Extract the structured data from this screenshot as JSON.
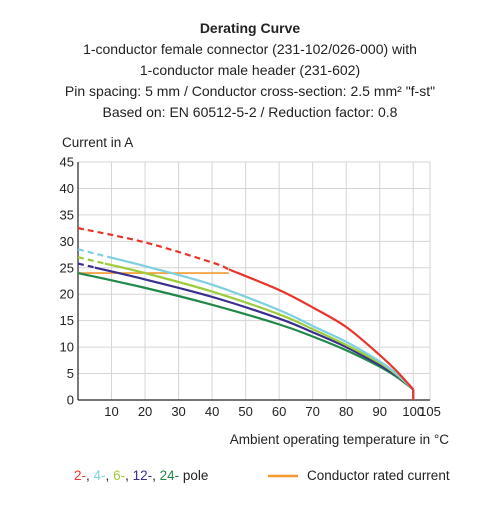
{
  "chart_data": {
    "type": "line",
    "title": "Derating Curve",
    "subtitle_lines": [
      "1-conductor female connector (231-102/026-000) with",
      "1-conductor male header (231-602)",
      "Pin spacing: 5 mm / Conductor cross-section: 2.5 mm² \"f-st\"",
      "Based on: EN 60512-5-2 / Reduction factor: 0.8"
    ],
    "ylabel": "Current in A",
    "xlabel": "Ambient operating temperature in °C",
    "xlim": [
      0,
      105
    ],
    "ylim": [
      0,
      45
    ],
    "x_ticks": [
      "10",
      "20",
      "30",
      "40",
      "50",
      "60",
      "70",
      "80",
      "90",
      "100",
      "105"
    ],
    "x_tick_values": [
      10,
      20,
      30,
      40,
      50,
      60,
      70,
      80,
      90,
      100,
      105
    ],
    "y_ticks": [
      "0",
      "5",
      "10",
      "15",
      "20",
      "25",
      "30",
      "35",
      "40",
      "45"
    ],
    "y_tick_values": [
      0,
      5,
      10,
      15,
      20,
      25,
      30,
      35,
      40,
      45
    ],
    "grid": true,
    "series": [
      {
        "name": "2-",
        "color": "#e8342a",
        "points": [
          [
            0,
            32.5
          ],
          [
            20,
            29.8
          ],
          [
            40,
            26.0
          ],
          [
            60,
            20.8
          ],
          [
            70,
            17.5
          ],
          [
            80,
            13.8
          ],
          [
            90,
            8.5
          ],
          [
            95,
            5.5
          ],
          [
            100,
            2.0
          ]
        ],
        "dashed_until": 45
      },
      {
        "name": "4-",
        "color": "#7ecfe0",
        "points": [
          [
            0,
            28.5
          ],
          [
            20,
            25.3
          ],
          [
            40,
            21.8
          ],
          [
            60,
            17.0
          ],
          [
            70,
            14.0
          ],
          [
            80,
            11.0
          ],
          [
            90,
            7.3
          ],
          [
            95,
            5.0
          ],
          [
            100,
            2.0
          ]
        ],
        "dashed_until": 10
      },
      {
        "name": "6-",
        "color": "#9ccb3b",
        "points": [
          [
            0,
            27.0
          ],
          [
            20,
            24.0
          ],
          [
            40,
            20.5
          ],
          [
            60,
            16.2
          ],
          [
            70,
            13.4
          ],
          [
            80,
            10.4
          ],
          [
            90,
            7.0
          ],
          [
            95,
            4.8
          ],
          [
            100,
            2.0
          ]
        ],
        "dashed_until": 8
      },
      {
        "name": "12-",
        "color": "#3a2e8f",
        "points": [
          [
            0,
            25.8
          ],
          [
            20,
            22.8
          ],
          [
            40,
            19.5
          ],
          [
            60,
            15.4
          ],
          [
            70,
            12.8
          ],
          [
            80,
            10.0
          ],
          [
            90,
            6.6
          ],
          [
            95,
            4.6
          ],
          [
            100,
            2.0
          ]
        ],
        "dashed_until": 5
      },
      {
        "name": "24-",
        "color": "#22884a",
        "points": [
          [
            0,
            24.0
          ],
          [
            20,
            21.2
          ],
          [
            40,
            18.0
          ],
          [
            60,
            14.3
          ],
          [
            70,
            12.0
          ],
          [
            80,
            9.4
          ],
          [
            90,
            6.3
          ],
          [
            95,
            4.4
          ],
          [
            100,
            2.0
          ]
        ],
        "dashed_until": 0
      }
    ],
    "rated_current": {
      "name": "Conductor rated current",
      "value": 24,
      "x_range": [
        0,
        45
      ],
      "color": "#f29a2e"
    },
    "legend": {
      "position": "bottom",
      "pole_items": [
        {
          "text": "2-",
          "color": "#e8342a"
        },
        {
          "text": ",",
          "color": "#222222"
        },
        {
          "text": "4-",
          "color": "#7ecfe0"
        },
        {
          "text": ",",
          "color": "#222222"
        },
        {
          "text": "6-",
          "color": "#9ccb3b"
        },
        {
          "text": ",",
          "color": "#222222"
        },
        {
          "text": "12-",
          "color": "#3a2e8f"
        },
        {
          "text": ",",
          "color": "#222222"
        },
        {
          "text": "24-",
          "color": "#22884a"
        },
        {
          "text": "pole",
          "color": "#222222"
        }
      ],
      "rated_label": "Conductor rated current"
    }
  }
}
